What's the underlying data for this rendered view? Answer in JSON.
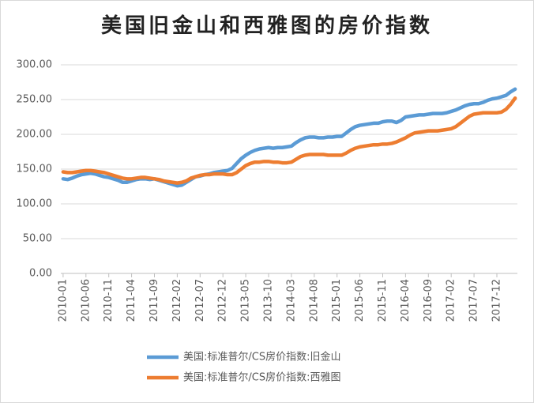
{
  "chart_data": {
    "type": "line",
    "title": "美国旧金山和西雅图的房价指数",
    "categories": [
      "2010-01",
      null,
      null,
      null,
      null,
      "2010-06",
      null,
      null,
      null,
      null,
      "2010-11",
      null,
      null,
      null,
      null,
      "2011-04",
      null,
      null,
      null,
      null,
      "2011-09",
      null,
      null,
      null,
      null,
      "2012-02",
      null,
      null,
      null,
      null,
      "2012-07",
      null,
      null,
      null,
      null,
      "2012-12",
      null,
      null,
      null,
      null,
      "2013-05",
      null,
      null,
      null,
      null,
      "2013-10",
      null,
      null,
      null,
      null,
      "2014-03",
      null,
      null,
      null,
      null,
      "2014-08",
      null,
      null,
      null,
      null,
      "2015-01",
      null,
      null,
      null,
      null,
      "2015-06",
      null,
      null,
      null,
      null,
      "2015-11",
      null,
      null,
      null,
      null,
      "2016-04",
      null,
      null,
      null,
      null,
      "2016-09",
      null,
      null,
      null,
      null,
      "2017-02",
      null,
      null,
      null,
      null,
      "2017-07",
      null,
      null,
      null,
      null,
      "2017-12",
      null,
      null,
      null,
      null
    ],
    "series": [
      {
        "name": "美国:标准普尔/CS房价指数:旧金山",
        "color": "#5b9bd5",
        "values": [
          136,
          135,
          137,
          140,
          142,
          143,
          144,
          143,
          141,
          139,
          138,
          136,
          134,
          131,
          131,
          133,
          135,
          136,
          136,
          135,
          136,
          134,
          132,
          130,
          128,
          126,
          127,
          131,
          135,
          139,
          140,
          142,
          143,
          145,
          146,
          147,
          148,
          151,
          158,
          165,
          170,
          174,
          177,
          179,
          180,
          181,
          180,
          181,
          181,
          182,
          183,
          188,
          192,
          195,
          196,
          196,
          195,
          195,
          196,
          196,
          197,
          197,
          202,
          207,
          211,
          213,
          214,
          215,
          216,
          216,
          218,
          219,
          219,
          217,
          220,
          225,
          226,
          227,
          228,
          228,
          229,
          230,
          230,
          230,
          231,
          233,
          235,
          238,
          241,
          243,
          244,
          244,
          246,
          249,
          251,
          252,
          254,
          256,
          261,
          265
        ]
      },
      {
        "name": "美国:标准普尔/CS房价指数:西雅图",
        "color": "#ed7d31",
        "values": [
          146,
          145,
          145,
          146,
          147,
          148,
          148,
          147,
          146,
          145,
          143,
          141,
          139,
          137,
          136,
          136,
          137,
          138,
          138,
          137,
          136,
          135,
          133,
          132,
          131,
          130,
          131,
          133,
          137,
          139,
          141,
          142,
          142,
          143,
          143,
          143,
          142,
          142,
          145,
          150,
          155,
          158,
          160,
          160,
          161,
          161,
          160,
          160,
          159,
          159,
          160,
          164,
          168,
          170,
          171,
          171,
          171,
          171,
          170,
          170,
          170,
          170,
          173,
          177,
          180,
          182,
          183,
          184,
          185,
          185,
          186,
          186,
          187,
          189,
          192,
          195,
          199,
          202,
          203,
          204,
          205,
          205,
          205,
          206,
          207,
          208,
          211,
          216,
          221,
          226,
          229,
          230,
          231,
          231,
          231,
          231,
          232,
          236,
          243,
          252
        ]
      }
    ],
    "ylim": [
      0,
      300
    ],
    "yticks": [
      {
        "value": 0,
        "label": "0.00"
      },
      {
        "value": 50,
        "label": "50.00"
      },
      {
        "value": 100,
        "label": "100.00"
      },
      {
        "value": 150,
        "label": "150.00"
      },
      {
        "value": 200,
        "label": "200.00"
      },
      {
        "value": 250,
        "label": "250.00"
      },
      {
        "value": 300,
        "label": "300.00"
      }
    ],
    "grid": true,
    "legend": "bottom"
  }
}
